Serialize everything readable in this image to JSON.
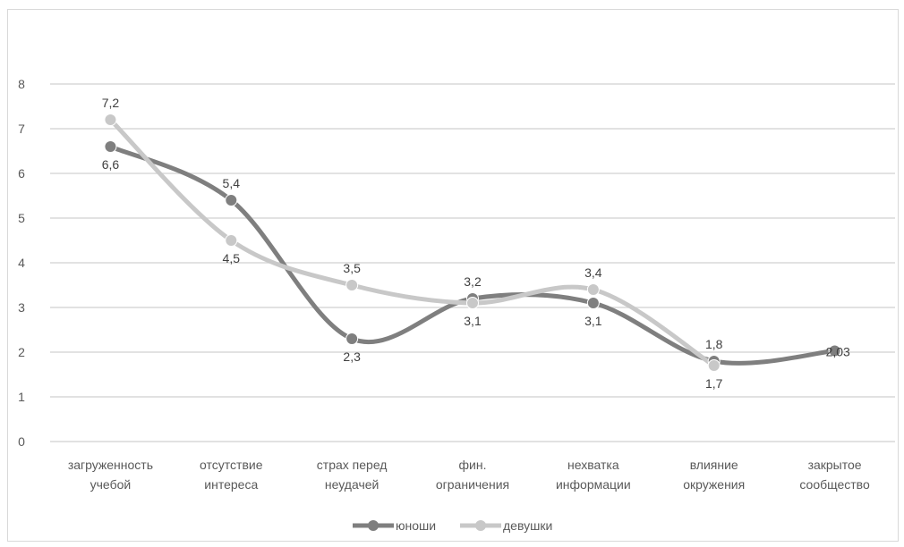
{
  "chart_data": {
    "type": "line",
    "smooth": true,
    "categories": [
      [
        "загруженность",
        "учебой"
      ],
      [
        "отсутствие",
        "интереса"
      ],
      [
        "страх перед",
        "неудачей"
      ],
      [
        "фин.",
        "ограничения"
      ],
      [
        "нехватка",
        "информации"
      ],
      [
        "влияние",
        "окружения"
      ],
      [
        "закрытое",
        "сообщество"
      ]
    ],
    "ylim": [
      0,
      8
    ],
    "yticks": [
      0,
      1,
      2,
      3,
      4,
      5,
      6,
      7,
      8
    ],
    "grid": true,
    "legend_position": "bottom",
    "series": [
      {
        "name": "юноши",
        "color": "#7f7f7f",
        "values": [
          6.6,
          5.4,
          2.3,
          3.2,
          3.1,
          1.8,
          2.03
        ],
        "labels": [
          "6,6",
          "5,4",
          "2,3",
          "3,2",
          "3,1",
          "1,8",
          "2,03"
        ],
        "label_pos": [
          "below",
          "above",
          "below",
          "above",
          "below",
          "above",
          "right"
        ]
      },
      {
        "name": "девушки",
        "color": "#c8c8c8",
        "values": [
          7.2,
          4.5,
          3.5,
          3.1,
          3.4,
          1.7,
          null
        ],
        "labels": [
          "7,2",
          "4,5",
          "3,5",
          "3,1",
          "3,4",
          "1,7",
          ""
        ],
        "label_pos": [
          "above",
          "below",
          "above",
          "below",
          "above",
          "below",
          "none"
        ]
      }
    ]
  }
}
